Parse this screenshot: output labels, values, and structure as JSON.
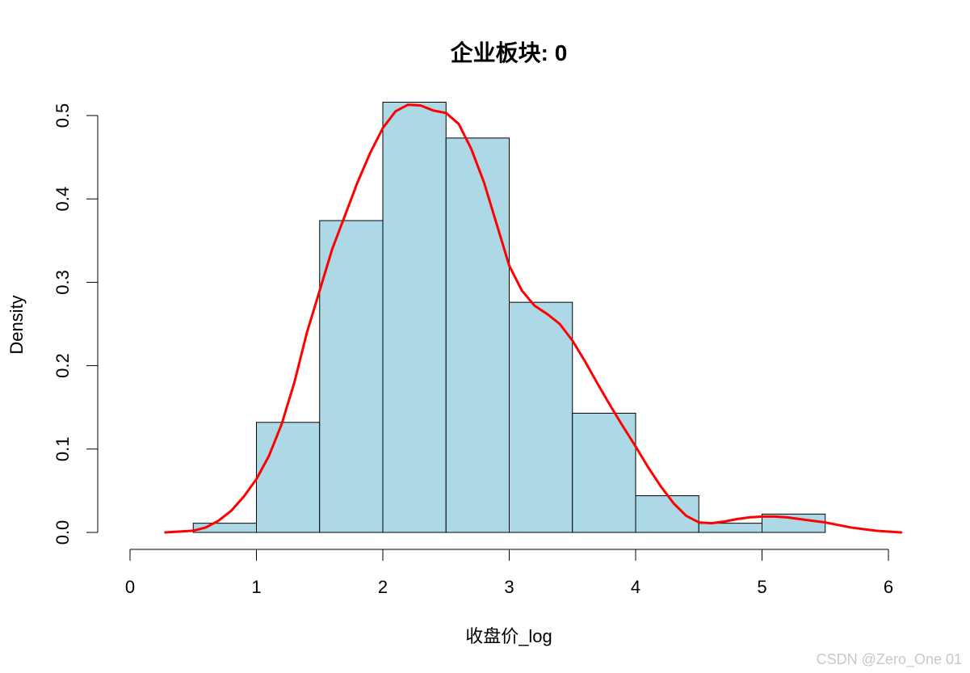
{
  "watermark": "CSDN @Zero_One 01",
  "chart_data": {
    "type": "histogram",
    "title": "企业板块: 0",
    "xlabel": "收盘价_log",
    "ylabel": "Density",
    "xlim": [
      0,
      6
    ],
    "ylim": [
      0,
      0.5
    ],
    "x_ticks": [
      "0",
      "1",
      "2",
      "3",
      "4",
      "5",
      "6"
    ],
    "y_ticks": [
      "0.0",
      "0.1",
      "0.2",
      "0.3",
      "0.4",
      "0.5"
    ],
    "bar_color": "#add8e6",
    "bar_edge_color": "#000000",
    "bars": [
      {
        "x0": 0.5,
        "x1": 1.0,
        "density": 0.011
      },
      {
        "x0": 1.0,
        "x1": 1.5,
        "density": 0.132
      },
      {
        "x0": 1.5,
        "x1": 2.0,
        "density": 0.374
      },
      {
        "x0": 2.0,
        "x1": 2.5,
        "density": 0.516
      },
      {
        "x0": 2.5,
        "x1": 3.0,
        "density": 0.473
      },
      {
        "x0": 3.0,
        "x1": 3.5,
        "density": 0.276
      },
      {
        "x0": 3.5,
        "x1": 4.0,
        "density": 0.143
      },
      {
        "x0": 4.0,
        "x1": 4.5,
        "density": 0.044
      },
      {
        "x0": 4.5,
        "x1": 5.0,
        "density": 0.011
      },
      {
        "x0": 5.0,
        "x1": 5.5,
        "density": 0.022
      }
    ],
    "density_curve": {
      "color": "#ff0000",
      "x": [
        0.28,
        0.5,
        0.6,
        0.7,
        0.8,
        0.9,
        1.0,
        1.1,
        1.2,
        1.3,
        1.4,
        1.5,
        1.6,
        1.7,
        1.8,
        1.9,
        2.0,
        2.1,
        2.2,
        2.3,
        2.4,
        2.5,
        2.6,
        2.7,
        2.8,
        2.9,
        3.0,
        3.1,
        3.2,
        3.3,
        3.4,
        3.5,
        3.6,
        3.7,
        3.8,
        3.9,
        4.0,
        4.1,
        4.2,
        4.3,
        4.4,
        4.5,
        4.6,
        4.7,
        4.8,
        4.9,
        5.0,
        5.1,
        5.2,
        5.3,
        5.4,
        5.5,
        5.6,
        5.7,
        5.8,
        5.9,
        6.0,
        6.1
      ],
      "y": [
        0.0,
        0.002,
        0.006,
        0.014,
        0.026,
        0.043,
        0.064,
        0.092,
        0.13,
        0.18,
        0.24,
        0.29,
        0.34,
        0.38,
        0.42,
        0.455,
        0.485,
        0.505,
        0.513,
        0.512,
        0.506,
        0.503,
        0.49,
        0.46,
        0.42,
        0.37,
        0.32,
        0.29,
        0.272,
        0.262,
        0.25,
        0.23,
        0.205,
        0.178,
        0.152,
        0.127,
        0.103,
        0.078,
        0.055,
        0.035,
        0.02,
        0.012,
        0.011,
        0.013,
        0.016,
        0.018,
        0.019,
        0.019,
        0.018,
        0.016,
        0.014,
        0.012,
        0.009,
        0.006,
        0.004,
        0.002,
        0.001,
        0.0
      ]
    }
  }
}
